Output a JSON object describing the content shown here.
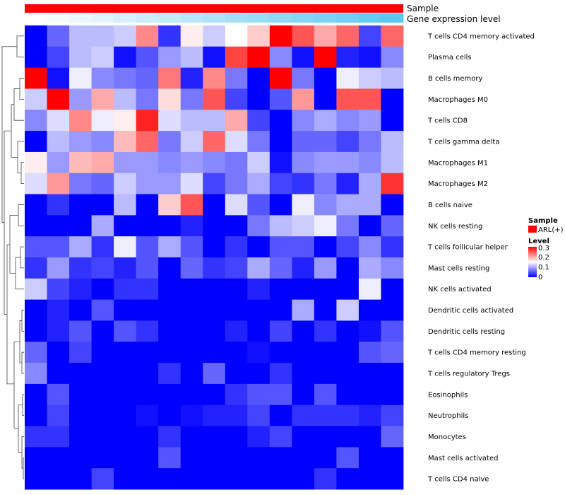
{
  "chart_data": {
    "type": "heatmap",
    "annotations": [
      {
        "label": "Sample",
        "color": "#ff0000"
      },
      {
        "label": "Gene expression level",
        "gradient": [
          "#ffffff",
          "#5cc8f0"
        ]
      }
    ],
    "columns": 17,
    "rows": [
      {
        "label": "T cells CD4 memory activated",
        "values": [
          0.0,
          0.06,
          0.11,
          0.11,
          0.12,
          0.22,
          0.03,
          0.16,
          0.12,
          0.15,
          0.18,
          0.3,
          0.25,
          0.2,
          0.24,
          0.04,
          0.24
        ]
      },
      {
        "label": "Plasma cells",
        "values": [
          0.0,
          0.04,
          0.11,
          0.12,
          0.01,
          0.05,
          0.09,
          0.11,
          0.01,
          0.26,
          0.3,
          0.08,
          0.01,
          0.3,
          0.02,
          0.01,
          0.08
        ]
      },
      {
        "label": "B cells memory",
        "values": [
          0.3,
          0.01,
          0.14,
          0.08,
          0.07,
          0.06,
          0.23,
          0.02,
          0.22,
          0.07,
          0.0,
          0.3,
          0.07,
          0.0,
          0.14,
          0.12,
          0.11
        ]
      },
      {
        "label": "Macrophages M0",
        "values": [
          0.12,
          0.3,
          0.09,
          0.2,
          0.11,
          0.07,
          0.17,
          0.07,
          0.25,
          0.04,
          0.0,
          0.05,
          0.21,
          0.0,
          0.25,
          0.25,
          0.0
        ]
      },
      {
        "label": "T cells CD8",
        "values": [
          0.08,
          0.13,
          0.22,
          0.14,
          0.16,
          0.28,
          0.13,
          0.11,
          0.11,
          0.2,
          0.04,
          0.0,
          0.08,
          0.1,
          0.08,
          0.09,
          0.0
        ]
      },
      {
        "label": "T cells gamma delta",
        "values": [
          0.0,
          0.11,
          0.09,
          0.08,
          0.19,
          0.24,
          0.07,
          0.12,
          0.24,
          0.13,
          0.07,
          0.0,
          0.06,
          0.06,
          0.04,
          0.07,
          0.11
        ]
      },
      {
        "label": "Macrophages M1",
        "values": [
          0.16,
          0.09,
          0.19,
          0.2,
          0.09,
          0.09,
          0.08,
          0.09,
          0.08,
          0.07,
          0.12,
          0.01,
          0.08,
          0.09,
          0.09,
          0.08,
          0.11
        ]
      },
      {
        "label": "Macrophages M2",
        "values": [
          0.13,
          0.21,
          0.07,
          0.06,
          0.12,
          0.09,
          0.09,
          0.13,
          0.04,
          0.07,
          0.1,
          0.04,
          0.03,
          0.07,
          0.02,
          0.1,
          0.27
        ]
      },
      {
        "label": "B cells naive",
        "values": [
          0.0,
          0.03,
          0.0,
          0.0,
          0.11,
          0.0,
          0.18,
          0.25,
          0.0,
          0.13,
          0.05,
          0.0,
          0.14,
          0.08,
          0.1,
          0.1,
          0.0
        ]
      },
      {
        "label": "NK cells resting",
        "values": [
          0.0,
          0.0,
          0.0,
          0.1,
          0.0,
          0.0,
          0.0,
          0.02,
          0.0,
          0.0,
          0.07,
          0.11,
          0.12,
          0.14,
          0.07,
          0.0,
          0.06
        ]
      },
      {
        "label": "T cells follicular helper",
        "values": [
          0.05,
          0.05,
          0.1,
          0.03,
          0.14,
          0.05,
          0.1,
          0.05,
          0.0,
          0.03,
          0.0,
          0.05,
          0.05,
          0.0,
          0.04,
          0.08,
          0.03
        ]
      },
      {
        "label": "Mast cells resting",
        "values": [
          0.03,
          0.09,
          0.03,
          0.04,
          0.02,
          0.05,
          0.0,
          0.06,
          0.03,
          0.04,
          0.1,
          0.06,
          0.02,
          0.09,
          0.0,
          0.1,
          0.08
        ]
      },
      {
        "label": "NK cells activated",
        "values": [
          0.12,
          0.04,
          0.02,
          0.0,
          0.03,
          0.03,
          0.0,
          0.0,
          0.0,
          0.0,
          0.02,
          0.0,
          0.0,
          0.0,
          0.0,
          0.14,
          0.0
        ]
      },
      {
        "label": "Dendritic cells activated",
        "values": [
          0.0,
          0.02,
          0.0,
          0.05,
          0.0,
          0.0,
          0.0,
          0.0,
          0.0,
          0.0,
          0.0,
          0.0,
          0.1,
          0.0,
          0.12,
          0.0,
          0.0
        ]
      },
      {
        "label": "Dendritic cells resting",
        "values": [
          0.0,
          0.02,
          0.05,
          0.0,
          0.05,
          0.03,
          0.0,
          0.0,
          0.0,
          0.02,
          0.0,
          0.04,
          0.0,
          0.03,
          0.0,
          0.01,
          0.05
        ]
      },
      {
        "label": "T cells CD4 memory resting",
        "values": [
          0.06,
          0.0,
          0.04,
          0.0,
          0.0,
          0.0,
          0.0,
          0.0,
          0.0,
          0.0,
          0.01,
          0.0,
          0.0,
          0.0,
          0.0,
          0.05,
          0.06
        ]
      },
      {
        "label": "T cells regulatory  Tregs",
        "values": [
          0.08,
          0.0,
          0.0,
          0.0,
          0.0,
          0.0,
          0.03,
          0.0,
          0.06,
          0.0,
          0.0,
          0.03,
          0.0,
          0.0,
          0.0,
          0.0,
          0.0
        ]
      },
      {
        "label": "Eosinophils",
        "values": [
          0.0,
          0.05,
          0.0,
          0.0,
          0.0,
          0.0,
          0.0,
          0.0,
          0.0,
          0.03,
          0.05,
          0.05,
          0.0,
          0.05,
          0.0,
          0.0,
          0.0
        ]
      },
      {
        "label": "Neutrophils",
        "values": [
          0.0,
          0.04,
          0.0,
          0.0,
          0.0,
          0.01,
          0.0,
          0.01,
          0.02,
          0.02,
          0.04,
          0.0,
          0.03,
          0.03,
          0.03,
          0.02,
          0.04
        ]
      },
      {
        "label": "Monocytes",
        "values": [
          0.03,
          0.03,
          0.0,
          0.0,
          0.0,
          0.0,
          0.03,
          0.0,
          0.0,
          0.0,
          0.02,
          0.04,
          0.0,
          0.0,
          0.0,
          0.0,
          0.06
        ]
      },
      {
        "label": "Mast cells activated",
        "values": [
          0.0,
          0.0,
          0.0,
          0.0,
          0.0,
          0.0,
          0.05,
          0.0,
          0.0,
          0.0,
          0.0,
          0.0,
          0.0,
          0.0,
          0.05,
          0.0,
          0.0
        ]
      },
      {
        "label": "T cells CD4 naive",
        "values": [
          0.0,
          0.0,
          0.0,
          0.04,
          0.0,
          0.0,
          0.0,
          0.0,
          0.0,
          0.0,
          0.0,
          0.0,
          0.0,
          0.03,
          0.0,
          0.0,
          0.0
        ]
      }
    ],
    "color_scale": {
      "min": 0,
      "mid": 0.15,
      "max": 0.3,
      "colors": [
        "#0000ff",
        "#ffffff",
        "#ff0000"
      ]
    },
    "legend": {
      "sample_title": "Sample",
      "sample_entry": "ARL(+)",
      "sample_color": "#ff0000",
      "level_title": "Level",
      "level_ticks": [
        "0.3",
        "0.2",
        "0.1",
        "0"
      ]
    }
  }
}
